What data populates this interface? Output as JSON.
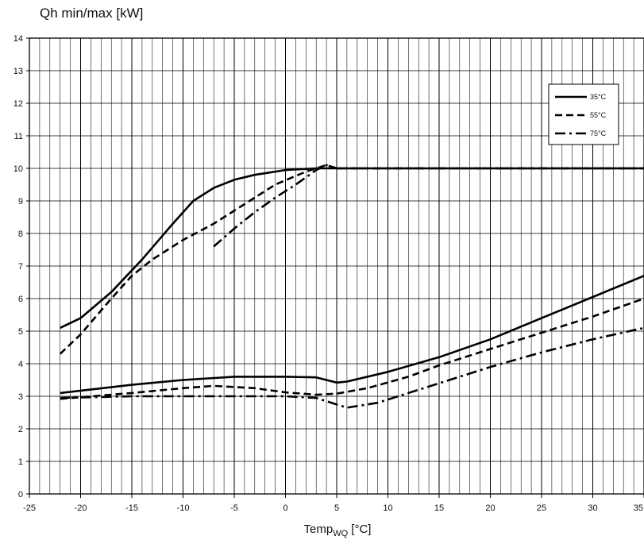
{
  "chart_data": {
    "type": "line",
    "title": "",
    "ylabel": "Qh min/max [kW]",
    "xlabel": {
      "main": "Temp",
      "sub": "WQ",
      "unit": " [°C]"
    },
    "xlim": [
      -25,
      35
    ],
    "ylim": [
      0,
      14
    ],
    "x_ticks": [
      -25,
      -20,
      -15,
      -10,
      -5,
      0,
      5,
      10,
      15,
      20,
      25,
      30,
      35
    ],
    "y_ticks": [
      0,
      1,
      2,
      3,
      4,
      5,
      6,
      7,
      8,
      9,
      10,
      11,
      12,
      13,
      14
    ],
    "x_minor_step": 1,
    "grid": true,
    "legend_position": "top-right",
    "legend": [
      {
        "label": "35°C",
        "style": "solid"
      },
      {
        "label": "55°C",
        "style": "dashed"
      },
      {
        "label": "75°C",
        "style": "dashdot"
      }
    ],
    "series": [
      {
        "name": "35°C",
        "style": "solid",
        "curve": "max",
        "points": [
          [
            -22,
            5.1
          ],
          [
            -20,
            5.4
          ],
          [
            -17,
            6.2
          ],
          [
            -14,
            7.2
          ],
          [
            -11,
            8.3
          ],
          [
            -9,
            9.0
          ],
          [
            -7,
            9.4
          ],
          [
            -5,
            9.65
          ],
          [
            -3,
            9.8
          ],
          [
            0,
            9.95
          ],
          [
            3,
            10.0
          ],
          [
            5,
            10.0
          ],
          [
            10,
            10.0
          ],
          [
            20,
            10.0
          ],
          [
            35,
            10.0
          ]
        ]
      },
      {
        "name": "35°C",
        "style": "solid",
        "curve": "min",
        "points": [
          [
            -22,
            3.1
          ],
          [
            -15,
            3.35
          ],
          [
            -10,
            3.5
          ],
          [
            -5,
            3.6
          ],
          [
            0,
            3.6
          ],
          [
            3,
            3.58
          ],
          [
            5,
            3.42
          ],
          [
            6,
            3.45
          ],
          [
            10,
            3.75
          ],
          [
            15,
            4.2
          ],
          [
            20,
            4.75
          ],
          [
            25,
            5.4
          ],
          [
            30,
            6.05
          ],
          [
            35,
            6.7
          ]
        ]
      },
      {
        "name": "55°C",
        "style": "dashed",
        "curve": "max",
        "points": [
          [
            -22,
            4.3
          ],
          [
            -20,
            4.9
          ],
          [
            -17,
            6.0
          ],
          [
            -15,
            6.7
          ],
          [
            -13,
            7.2
          ],
          [
            -10,
            7.8
          ],
          [
            -7,
            8.3
          ],
          [
            -4,
            8.9
          ],
          [
            -1,
            9.5
          ],
          [
            2,
            9.9
          ],
          [
            4,
            10.1
          ],
          [
            5,
            10.0
          ],
          [
            10,
            10.0
          ],
          [
            20,
            10.0
          ],
          [
            35,
            10.0
          ]
        ]
      },
      {
        "name": "55°C",
        "style": "dashed",
        "curve": "min",
        "points": [
          [
            -22,
            2.92
          ],
          [
            -15,
            3.1
          ],
          [
            -10,
            3.25
          ],
          [
            -7,
            3.32
          ],
          [
            -3,
            3.25
          ],
          [
            0,
            3.12
          ],
          [
            3,
            3.05
          ],
          [
            5,
            3.08
          ],
          [
            8,
            3.25
          ],
          [
            12,
            3.6
          ],
          [
            15,
            3.95
          ],
          [
            20,
            4.45
          ],
          [
            25,
            4.95
          ],
          [
            30,
            5.45
          ],
          [
            35,
            6.0
          ]
        ]
      },
      {
        "name": "75°C",
        "style": "dashdot",
        "curve": "max",
        "points": [
          [
            -7,
            7.6
          ],
          [
            -5,
            8.15
          ],
          [
            -3,
            8.65
          ],
          [
            -1,
            9.1
          ],
          [
            1,
            9.5
          ],
          [
            3,
            9.95
          ],
          [
            4,
            10.1
          ],
          [
            5,
            10.0
          ],
          [
            10,
            10.0
          ],
          [
            20,
            10.0
          ],
          [
            35,
            10.0
          ]
        ]
      },
      {
        "name": "75°C",
        "style": "dashdot",
        "curve": "min",
        "points": [
          [
            -22,
            2.95
          ],
          [
            -15,
            3.0
          ],
          [
            -10,
            3.0
          ],
          [
            -5,
            3.0
          ],
          [
            0,
            3.0
          ],
          [
            3,
            2.95
          ],
          [
            6,
            2.65
          ],
          [
            9,
            2.8
          ],
          [
            12,
            3.1
          ],
          [
            15,
            3.4
          ],
          [
            20,
            3.9
          ],
          [
            25,
            4.35
          ],
          [
            30,
            4.75
          ],
          [
            35,
            5.1
          ]
        ]
      }
    ]
  }
}
